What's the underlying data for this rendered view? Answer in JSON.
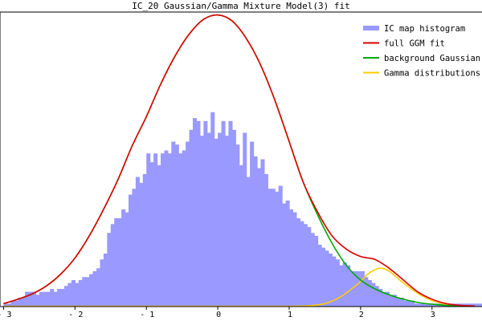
{
  "chart_data": {
    "type": "histogram+line",
    "title": "IC_20 Gaussian/Gamma Mixture Model(3) fit",
    "xlabel": "",
    "ylabel": "",
    "xlim": [
      -3.05,
      3.7
    ],
    "ylim": [
      0,
      1.0
    ],
    "x_ticks": [
      {
        "value": -3,
        "label": "- 3"
      },
      {
        "value": -2,
        "label": "- 2"
      },
      {
        "value": -1,
        "label": "- 1"
      },
      {
        "value": 0,
        "label": "0"
      },
      {
        "value": 1,
        "label": "1"
      },
      {
        "value": 2,
        "label": "2"
      },
      {
        "value": 3,
        "label": "3"
      }
    ],
    "legend": {
      "position": "top-right",
      "entries": [
        {
          "label": "IC map histogram",
          "color": "#9999ff"
        },
        {
          "label": "full GGM fit",
          "color": "#dd0000"
        },
        {
          "label": "background Gaussian",
          "color": "#00aa00"
        },
        {
          "label": "Gamma distributions",
          "color": "#ffcc00"
        }
      ]
    },
    "series": [
      {
        "name": "IC map histogram",
        "kind": "histogram",
        "color": "#9999ff",
        "bin_width": 0.05,
        "bins_x": [
          -3.0,
          -2.95,
          -2.9,
          -2.85,
          -2.8,
          -2.75,
          -2.7,
          -2.65,
          -2.6,
          -2.55,
          -2.5,
          -2.45,
          -2.4,
          -2.35,
          -2.3,
          -2.25,
          -2.2,
          -2.15,
          -2.1,
          -2.05,
          -2.0,
          -1.95,
          -1.9,
          -1.85,
          -1.8,
          -1.75,
          -1.7,
          -1.65,
          -1.6,
          -1.55,
          -1.5,
          -1.45,
          -1.4,
          -1.35,
          -1.3,
          -1.25,
          -1.2,
          -1.15,
          -1.1,
          -1.05,
          -1.0,
          -0.95,
          -0.9,
          -0.85,
          -0.8,
          -0.75,
          -0.7,
          -0.65,
          -0.6,
          -0.55,
          -0.5,
          -0.45,
          -0.4,
          -0.35,
          -0.3,
          -0.25,
          -0.2,
          -0.15,
          -0.1,
          -0.05,
          0.0,
          0.05,
          0.1,
          0.15,
          0.2,
          0.25,
          0.3,
          0.35,
          0.4,
          0.45,
          0.5,
          0.55,
          0.6,
          0.65,
          0.7,
          0.75,
          0.8,
          0.85,
          0.9,
          0.95,
          1.0,
          1.05,
          1.1,
          1.15,
          1.2,
          1.25,
          1.3,
          1.35,
          1.4,
          1.45,
          1.5,
          1.55,
          1.6,
          1.65,
          1.7,
          1.75,
          1.8,
          1.85,
          1.9,
          1.95,
          2.0,
          2.05,
          2.1,
          2.15,
          2.2,
          2.25,
          2.3,
          2.35,
          2.4,
          2.45,
          2.5,
          2.55,
          2.6,
          2.65,
          2.7,
          2.75,
          2.8,
          2.85,
          2.9,
          2.95,
          3.0,
          3.05,
          3.1,
          3.15,
          3.2,
          3.25,
          3.3,
          3.35,
          3.4,
          3.45,
          3.5,
          3.55,
          3.6,
          3.65
        ],
        "values": [
          0.01,
          0.01,
          0.02,
          0.02,
          0.03,
          0.03,
          0.05,
          0.05,
          0.05,
          0.04,
          0.05,
          0.05,
          0.05,
          0.06,
          0.05,
          0.06,
          0.06,
          0.07,
          0.08,
          0.09,
          0.08,
          0.09,
          0.1,
          0.1,
          0.11,
          0.12,
          0.13,
          0.16,
          0.18,
          0.25,
          0.28,
          0.3,
          0.3,
          0.33,
          0.32,
          0.38,
          0.4,
          0.44,
          0.42,
          0.45,
          0.52,
          0.49,
          0.52,
          0.48,
          0.52,
          0.53,
          0.52,
          0.56,
          0.55,
          0.52,
          0.53,
          0.56,
          0.6,
          0.64,
          0.63,
          0.58,
          0.63,
          0.59,
          0.66,
          0.57,
          0.59,
          0.63,
          0.58,
          0.63,
          0.6,
          0.55,
          0.48,
          0.59,
          0.44,
          0.56,
          0.51,
          0.47,
          0.5,
          0.45,
          0.4,
          0.4,
          0.39,
          0.41,
          0.35,
          0.36,
          0.33,
          0.32,
          0.3,
          0.29,
          0.28,
          0.27,
          0.25,
          0.24,
          0.21,
          0.2,
          0.19,
          0.18,
          0.17,
          0.16,
          0.14,
          0.15,
          0.14,
          0.12,
          0.12,
          0.12,
          0.12,
          0.1,
          0.09,
          0.08,
          0.07,
          0.06,
          0.05,
          0.05,
          0.04,
          0.04,
          0.03,
          0.03,
          0.02,
          0.02,
          0.02,
          0.01,
          0.01,
          0.01,
          0.01,
          0.01,
          0.01,
          0.01,
          0.01,
          0.01,
          0.01,
          0.01,
          0.01,
          0.01,
          0.01,
          0.01,
          0.01,
          0.01,
          0.01,
          0.01
        ]
      },
      {
        "name": "full GGM fit",
        "kind": "line",
        "color": "#dd0000",
        "x": [
          -3.0,
          -2.8,
          -2.6,
          -2.4,
          -2.2,
          -2.0,
          -1.8,
          -1.6,
          -1.4,
          -1.2,
          -1.0,
          -0.8,
          -0.6,
          -0.4,
          -0.2,
          0.0,
          0.2,
          0.4,
          0.6,
          0.8,
          1.0,
          1.2,
          1.4,
          1.6,
          1.8,
          2.0,
          2.2,
          2.4,
          2.6,
          2.8,
          3.0,
          3.2,
          3.4,
          3.6
        ],
        "y": [
          0.01,
          0.025,
          0.043,
          0.07,
          0.11,
          0.165,
          0.24,
          0.33,
          0.43,
          0.545,
          0.645,
          0.755,
          0.85,
          0.925,
          0.975,
          0.99,
          0.97,
          0.91,
          0.82,
          0.7,
          0.56,
          0.42,
          0.32,
          0.24,
          0.195,
          0.17,
          0.16,
          0.13,
          0.09,
          0.05,
          0.025,
          0.01,
          0.004,
          0.002
        ]
      },
      {
        "name": "background Gaussian",
        "kind": "line",
        "color": "#00aa00",
        "x": [
          -3.0,
          -2.8,
          -2.6,
          -2.4,
          -2.2,
          -2.0,
          -1.8,
          -1.6,
          -1.4,
          -1.2,
          -1.0,
          -0.8,
          -0.6,
          -0.4,
          -0.2,
          0.0,
          0.2,
          0.4,
          0.6,
          0.8,
          1.0,
          1.2,
          1.4,
          1.6,
          1.8,
          2.0,
          2.2,
          2.4,
          2.6,
          2.8,
          3.0,
          3.2,
          3.4,
          3.6
        ],
        "y": [
          0.01,
          0.025,
          0.043,
          0.07,
          0.11,
          0.165,
          0.24,
          0.33,
          0.43,
          0.545,
          0.645,
          0.755,
          0.85,
          0.925,
          0.975,
          0.99,
          0.97,
          0.91,
          0.82,
          0.7,
          0.56,
          0.42,
          0.31,
          0.215,
          0.14,
          0.09,
          0.06,
          0.04,
          0.025,
          0.014,
          0.008,
          0.004,
          0.002,
          0.001
        ]
      },
      {
        "name": "Gamma distributions",
        "kind": "line",
        "color": "#ffcc00",
        "x": [
          -3.0,
          -2.0,
          -1.0,
          0.0,
          1.0,
          1.3,
          1.5,
          1.7,
          1.9,
          2.0,
          2.1,
          2.2,
          2.3,
          2.4,
          2.5,
          2.6,
          2.8,
          3.0,
          3.2,
          3.4,
          3.6
        ],
        "y": [
          0.001,
          0.001,
          0.001,
          0.001,
          0.001,
          0.003,
          0.01,
          0.03,
          0.065,
          0.085,
          0.11,
          0.125,
          0.13,
          0.12,
          0.1,
          0.08,
          0.045,
          0.02,
          0.008,
          0.003,
          0.001
        ]
      }
    ]
  }
}
